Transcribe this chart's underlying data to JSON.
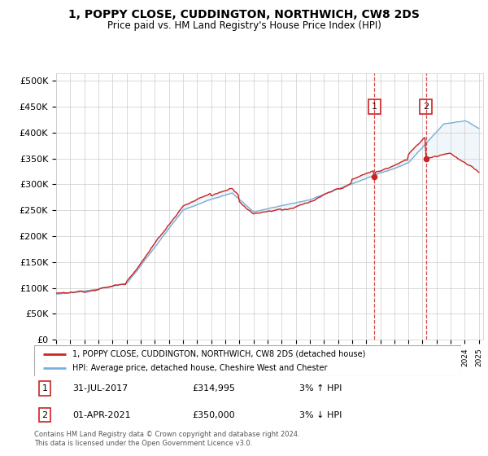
{
  "title": "1, POPPY CLOSE, CUDDINGTON, NORTHWICH, CW8 2DS",
  "subtitle": "Price paid vs. HM Land Registry's House Price Index (HPI)",
  "yticks": [
    0,
    50000,
    100000,
    150000,
    200000,
    250000,
    300000,
    350000,
    400000,
    450000,
    500000
  ],
  "ytick_labels": [
    "£0",
    "£50K",
    "£100K",
    "£150K",
    "£200K",
    "£250K",
    "£300K",
    "£350K",
    "£400K",
    "£450K",
    "£500K"
  ],
  "hpi_color": "#7ab0d8",
  "price_color": "#cc2222",
  "vline_color": "#cc2222",
  "marker1_year": 2017.58,
  "marker1_value": 314995,
  "marker2_year": 2021.25,
  "marker2_value": 350000,
  "legend_line1": "1, POPPY CLOSE, CUDDINGTON, NORTHWICH, CW8 2DS (detached house)",
  "legend_line2": "HPI: Average price, detached house, Cheshire West and Chester",
  "annotation1_date": "31-JUL-2017",
  "annotation1_price": "£314,995",
  "annotation1_hpi": "3% ↑ HPI",
  "annotation2_date": "01-APR-2021",
  "annotation2_price": "£350,000",
  "annotation2_hpi": "3% ↓ HPI",
  "footer": "Contains HM Land Registry data © Crown copyright and database right 2024.\nThis data is licensed under the Open Government Licence v3.0.",
  "background_color": "#ffffff",
  "grid_color": "#cccccc",
  "fill_color": "#c8dff0"
}
